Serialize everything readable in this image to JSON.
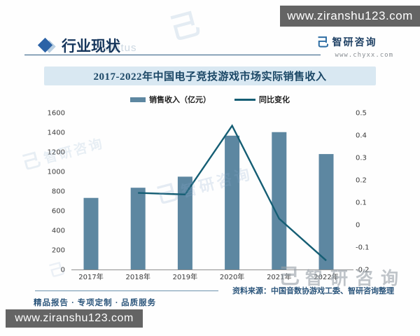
{
  "watermark_bars": {
    "top_url": "www.ziranshu123.com",
    "bottom_url": "www.ziranshu123.com"
  },
  "icons": {
    "brand_logo_glyph": "己",
    "section_diamond": "diamond"
  },
  "header": {
    "section_title": "行业现状",
    "section_title_ghost": "Status",
    "brand_name": "智研咨询",
    "brand_site": "www.chyxx.com"
  },
  "legend": {
    "bar_label": "销售收入（亿元）",
    "line_label": "同比变化"
  },
  "chart_data": {
    "type": "bar",
    "title": "2017-2022年中国电子竞技游戏市场实际销售收入",
    "categories": [
      "2017年",
      "2018年",
      "2019年",
      "2020年",
      "2021年",
      "2022年"
    ],
    "series": [
      {
        "name": "销售收入（亿元）",
        "type": "bar",
        "axis": "left",
        "values": [
          730.5,
          834.4,
          947.3,
          1365.6,
          1401.8,
          1178.0
        ]
      },
      {
        "name": "同比变化",
        "type": "line",
        "axis": "right",
        "values": [
          null,
          0.142,
          0.135,
          0.442,
          0.027,
          -0.16
        ]
      }
    ],
    "left_axis": {
      "min": 0,
      "max": 1600,
      "step": 200,
      "ticks": [
        "1600",
        "1400",
        "1200",
        "1000",
        "800",
        "600",
        "400",
        "200",
        "0"
      ]
    },
    "right_axis": {
      "min": -0.2,
      "max": 0.5,
      "step": 0.1,
      "ticks": [
        "0.5",
        "0.4",
        "0.3",
        "0.2",
        "0.1",
        "0",
        "-0.1",
        "-0.2"
      ]
    },
    "grid": false,
    "legend_position": "top",
    "colors": {
      "bar": "#5d87a1",
      "line": "#155e74",
      "axis_text": "#3a3a3a",
      "axis_line": "#8f8f8f"
    }
  },
  "footer": {
    "source": "资料来源：中国音数协游戏工委、智研咨询整理",
    "tagline": "精品报告 · 专项定制 · 品质服务"
  },
  "watermark_center": {
    "text": "智研咨询"
  }
}
